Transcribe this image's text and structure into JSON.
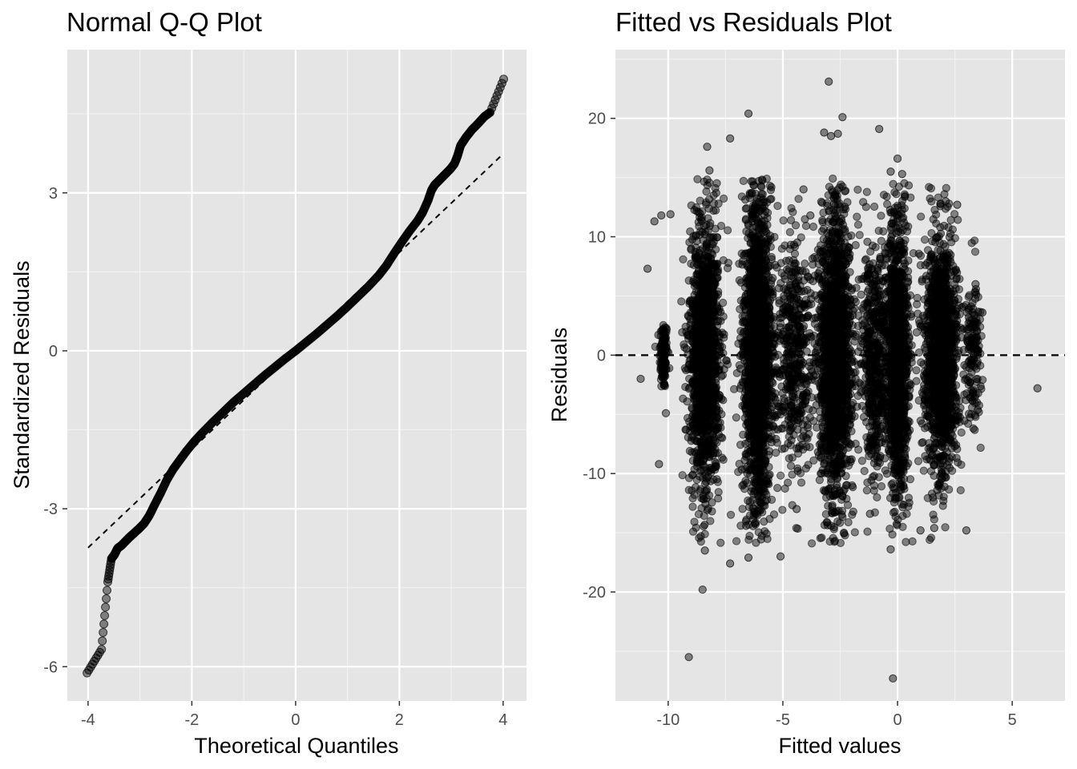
{
  "chart_data": [
    {
      "type": "scatter",
      "title": "Normal Q-Q Plot",
      "xlabel": "Theoretical Quantiles",
      "ylabel": "Standardized Residuals",
      "xlim": [
        -4.4,
        4.45
      ],
      "ylim": [
        -6.65,
        5.72
      ],
      "xticks": [
        -4,
        -2,
        0,
        2,
        4
      ],
      "yticks": [
        -6,
        -3,
        0,
        3
      ],
      "grid": true,
      "point_color": "#000000",
      "point_opacity": 0.45,
      "reference_line": {
        "style": "dashed",
        "slope": 0.935,
        "intercept": 0.0,
        "x_range": [
          -4.0,
          4.0
        ]
      },
      "points": [
        [
          -4.02,
          -6.12
        ],
        [
          -3.74,
          -5.67
        ],
        [
          -3.62,
          -4.39
        ],
        [
          -3.55,
          -3.95
        ],
        [
          -3.49,
          -3.87
        ],
        [
          -3.43,
          -3.75
        ],
        [
          -3.36,
          -3.7
        ],
        [
          -3.28,
          -3.62
        ],
        [
          -3.2,
          -3.54
        ],
        [
          -3.12,
          -3.47
        ],
        [
          -3.02,
          -3.38
        ],
        [
          -2.92,
          -3.28
        ],
        [
          -2.82,
          -3.13
        ],
        [
          -2.72,
          -2.93
        ],
        [
          -2.6,
          -2.7
        ],
        [
          -2.48,
          -2.45
        ],
        [
          -2.36,
          -2.25
        ],
        [
          -2.22,
          -2.06
        ],
        [
          -2.1,
          -1.9
        ],
        [
          -1.95,
          -1.72
        ],
        [
          -1.8,
          -1.56
        ],
        [
          -1.6,
          -1.36
        ],
        [
          -1.4,
          -1.17
        ],
        [
          -1.2,
          -0.98
        ],
        [
          -1.0,
          -0.81
        ],
        [
          -0.8,
          -0.64
        ],
        [
          -0.6,
          -0.47
        ],
        [
          -0.4,
          -0.31
        ],
        [
          -0.2,
          -0.15
        ],
        [
          0.0,
          0.0
        ],
        [
          0.2,
          0.16
        ],
        [
          0.4,
          0.32
        ],
        [
          0.6,
          0.49
        ],
        [
          0.8,
          0.66
        ],
        [
          1.0,
          0.84
        ],
        [
          1.2,
          1.03
        ],
        [
          1.4,
          1.22
        ],
        [
          1.6,
          1.43
        ],
        [
          1.75,
          1.62
        ],
        [
          1.9,
          1.85
        ],
        [
          2.05,
          2.07
        ],
        [
          2.2,
          2.28
        ],
        [
          2.35,
          2.47
        ],
        [
          2.45,
          2.63
        ],
        [
          2.55,
          2.85
        ],
        [
          2.62,
          3.05
        ],
        [
          2.68,
          3.15
        ],
        [
          2.78,
          3.25
        ],
        [
          2.88,
          3.35
        ],
        [
          2.98,
          3.45
        ],
        [
          3.06,
          3.55
        ],
        [
          3.12,
          3.7
        ],
        [
          3.18,
          3.9
        ],
        [
          3.28,
          4.05
        ],
        [
          3.4,
          4.2
        ],
        [
          3.52,
          4.32
        ],
        [
          3.64,
          4.45
        ],
        [
          3.75,
          4.53
        ],
        [
          4.01,
          5.16
        ]
      ]
    },
    {
      "type": "scatter",
      "title": "Fitted vs Residuals Plot",
      "xlabel": "Fitted values",
      "ylabel": "Residuals",
      "xlim": [
        -12.3,
        7.3
      ],
      "ylim": [
        -29.2,
        25.8
      ],
      "xticks": [
        -10,
        -5,
        0,
        5
      ],
      "yticks": [
        -20,
        -10,
        0,
        10,
        20
      ],
      "grid": true,
      "point_color": "#000000",
      "point_opacity": 0.45,
      "reference_line": {
        "style": "dashed",
        "y": 0
      },
      "clusters": [
        {
          "x": -10.2,
          "spread_x": 0.15,
          "y_sd": 1.5,
          "n": 120
        },
        {
          "x": -8.4,
          "spread_x": 0.55,
          "y_sd": 5.5,
          "n": 1500
        },
        {
          "x": -6.1,
          "spread_x": 0.5,
          "y_sd": 6.2,
          "n": 1800
        },
        {
          "x": -4.5,
          "spread_x": 0.7,
          "y_sd": 5.0,
          "n": 500
        },
        {
          "x": -2.7,
          "spread_x": 0.6,
          "y_sd": 6.0,
          "n": 1700
        },
        {
          "x": -1.0,
          "spread_x": 0.5,
          "y_sd": 5.0,
          "n": 500
        },
        {
          "x": 0.0,
          "spread_x": 0.4,
          "y_sd": 5.5,
          "n": 1300
        },
        {
          "x": 1.9,
          "spread_x": 0.6,
          "y_sd": 5.0,
          "n": 1400
        },
        {
          "x": 3.3,
          "spread_x": 0.3,
          "y_sd": 3.5,
          "n": 150
        }
      ],
      "outliers": [
        [
          -11.2,
          -2.0
        ],
        [
          -10.9,
          7.3
        ],
        [
          -10.6,
          11.3
        ],
        [
          -10.3,
          11.8
        ],
        [
          -10.4,
          -9.2
        ],
        [
          -10.1,
          -4.9
        ],
        [
          -9.9,
          11.9
        ],
        [
          -9.1,
          -25.5
        ],
        [
          -8.5,
          -19.8
        ],
        [
          -8.4,
          -16.5
        ],
        [
          -8.3,
          17.6
        ],
        [
          -8.2,
          15.6
        ],
        [
          -7.3,
          -17.6
        ],
        [
          -7.3,
          18.3
        ],
        [
          -6.5,
          -17.1
        ],
        [
          -6.5,
          20.4
        ],
        [
          -3.0,
          23.1
        ],
        [
          -2.4,
          20.1
        ],
        [
          -3.2,
          18.8
        ],
        [
          -2.9,
          18.5
        ],
        [
          -2.6,
          18.7
        ],
        [
          -0.8,
          19.1
        ],
        [
          -0.3,
          15.5
        ],
        [
          0.0,
          16.6
        ],
        [
          0.2,
          15.3
        ],
        [
          -0.3,
          -16.4
        ],
        [
          -0.2,
          -27.3
        ],
        [
          3.0,
          -14.8
        ],
        [
          6.1,
          -2.8
        ],
        [
          3.7,
          3.6
        ],
        [
          2.6,
          12.7
        ],
        [
          3.4,
          6.0
        ],
        [
          1.6,
          -14.6
        ],
        [
          2.1,
          13.0
        ],
        [
          -4.1,
          14.0
        ],
        [
          -3.8,
          11.8
        ],
        [
          -5.1,
          -17.0
        ],
        [
          -1.2,
          -13.4
        ],
        [
          1.0,
          -14.8
        ],
        [
          -4.4,
          -13.0
        ]
      ]
    }
  ]
}
